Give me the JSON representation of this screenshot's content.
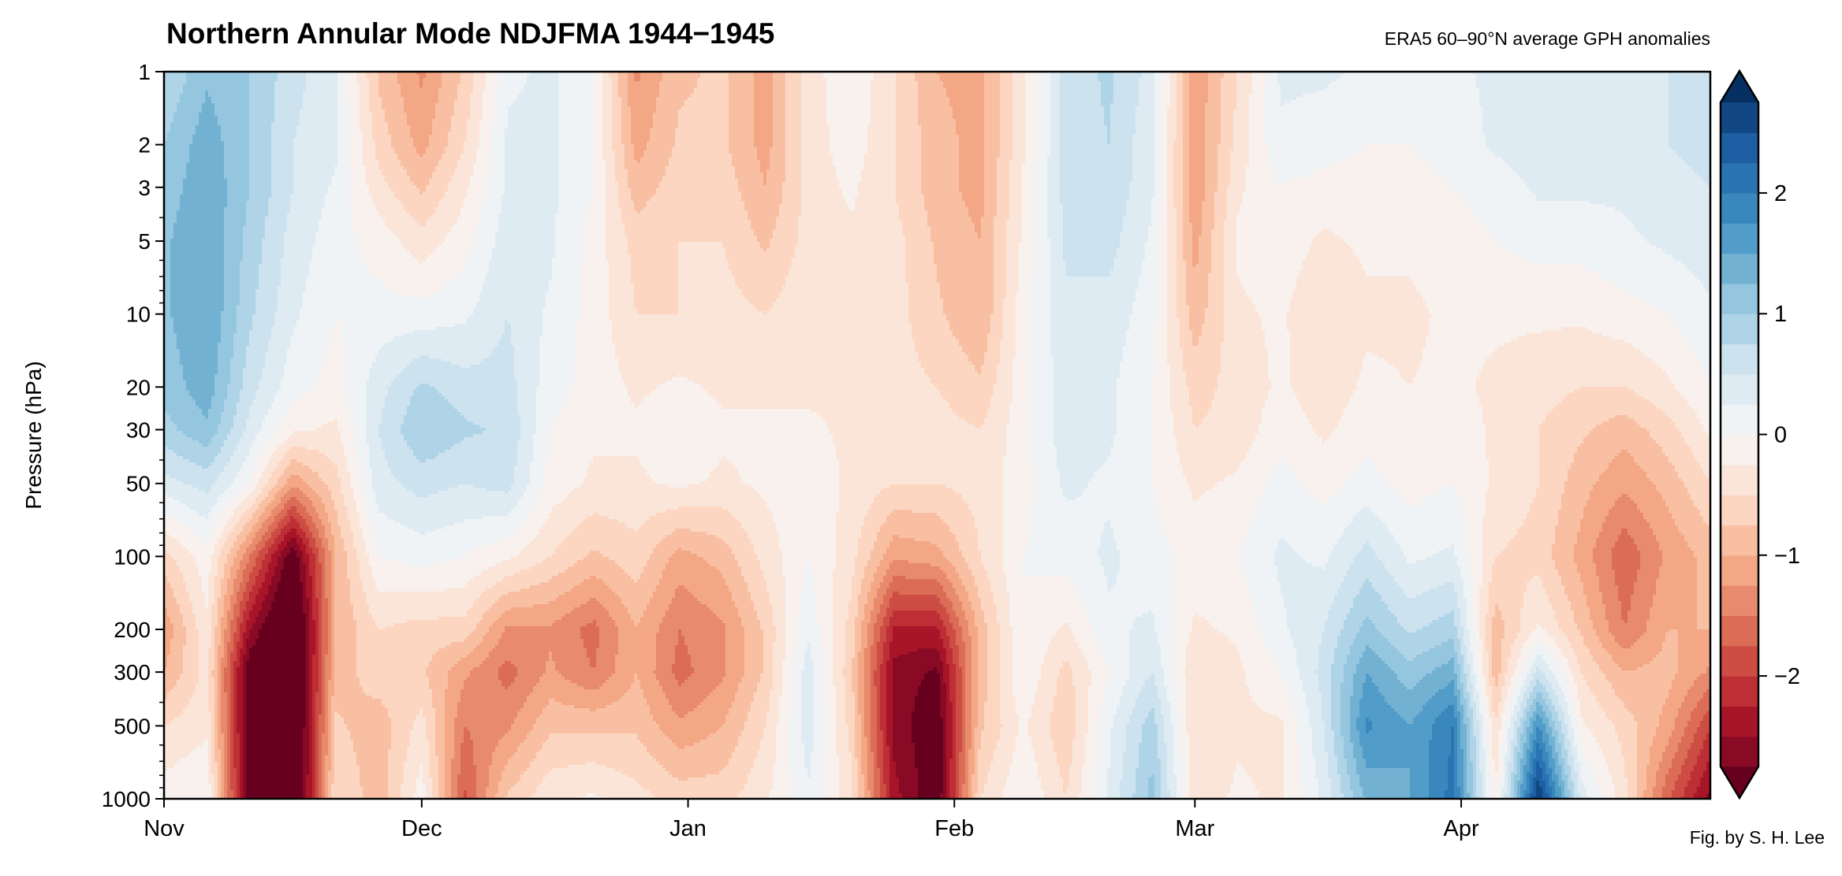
{
  "chart_data": {
    "type": "heatmap",
    "style": "filled-contour",
    "title": "Northern Annular Mode NDJFMA 1944−1945",
    "subtitle": "ERA5 60–90°N average GPH anomalies",
    "xlabel": "",
    "ylabel": "Pressure (hPa)",
    "yscale": "log",
    "ylim": [
      1000,
      1
    ],
    "yticks": [
      1,
      2,
      3,
      5,
      10,
      20,
      30,
      50,
      100,
      200,
      300,
      500,
      1000
    ],
    "xlim": [
      "1944-11-01",
      "1945-04-30"
    ],
    "xticks": [
      {
        "label": "Nov",
        "date": "1944-11-01"
      },
      {
        "label": "Dec",
        "date": "1944-12-01"
      },
      {
        "label": "Jan",
        "date": "1945-01-01"
      },
      {
        "label": "Feb",
        "date": "1945-02-01"
      },
      {
        "label": "Mar",
        "date": "1945-03-01"
      },
      {
        "label": "Apr",
        "date": "1945-04-01"
      }
    ],
    "grid": false,
    "pressure_levels": [
      1,
      2,
      3,
      5,
      10,
      20,
      30,
      50,
      100,
      200,
      300,
      500,
      1000
    ],
    "dates": [
      "1944-11-01",
      "1944-11-06",
      "1944-11-11",
      "1944-11-16",
      "1944-11-21",
      "1944-11-26",
      "1944-12-01",
      "1944-12-06",
      "1944-12-11",
      "1944-12-16",
      "1944-12-21",
      "1944-12-26",
      "1944-12-31",
      "1945-01-05",
      "1945-01-10",
      "1945-01-15",
      "1945-01-20",
      "1945-01-25",
      "1945-01-30",
      "1945-02-04",
      "1945-02-09",
      "1945-02-14",
      "1945-02-19",
      "1945-02-24",
      "1945-03-01",
      "1945-03-06",
      "1945-03-11",
      "1945-03-16",
      "1945-03-21",
      "1945-03-26",
      "1945-03-31",
      "1945-04-05",
      "1945-04-10",
      "1945-04-15",
      "1945-04-20",
      "1945-04-25",
      "1945-04-30"
    ],
    "values": [
      [
        0.75,
        1.0,
        1.1,
        1.2,
        1.2,
        1.1,
        0.9,
        0.4,
        -0.6,
        -1.2,
        -1.0,
        -0.5,
        -0.1
      ],
      [
        1.2,
        1.4,
        1.45,
        1.5,
        1.5,
        1.4,
        1.2,
        0.6,
        -0.1,
        -0.3,
        -0.4,
        -0.3,
        0.0
      ],
      [
        1.0,
        1.0,
        1.0,
        0.9,
        0.8,
        0.6,
        0.4,
        0.0,
        -1.5,
        -2.5,
        -3.0,
        -3.0,
        -3.0
      ],
      [
        0.6,
        0.5,
        0.5,
        0.4,
        0.3,
        0.1,
        -0.2,
        -1.2,
        -3.0,
        -3.5,
        -3.5,
        -3.5,
        -3.5
      ],
      [
        0.3,
        0.3,
        0.2,
        0.1,
        0.0,
        -0.1,
        -0.3,
        -0.6,
        -1.0,
        -1.0,
        -0.9,
        -0.7,
        -0.5
      ],
      [
        -0.8,
        -0.6,
        -0.4,
        -0.1,
        0.1,
        0.4,
        0.5,
        0.4,
        0.0,
        -0.5,
        -0.6,
        -0.9,
        -0.9
      ],
      [
        -1.3,
        -1.1,
        -0.8,
        -0.4,
        0.1,
        0.8,
        1.0,
        0.6,
        0.1,
        -0.6,
        -0.7,
        -0.4,
        -0.1
      ],
      [
        -0.7,
        -0.5,
        -0.3,
        -0.1,
        0.2,
        0.6,
        0.8,
        0.5,
        0.0,
        -0.6,
        -1.2,
        -1.5,
        -1.8
      ],
      [
        0.2,
        0.3,
        0.3,
        0.4,
        0.5,
        0.6,
        0.7,
        0.6,
        -0.2,
        -1.3,
        -1.6,
        -1.3,
        -0.7
      ],
      [
        0.3,
        0.3,
        0.3,
        0.3,
        0.2,
        0.1,
        0.0,
        -0.1,
        -0.5,
        -1.3,
        -1.2,
        -0.8,
        -0.3
      ],
      [
        0.0,
        0.0,
        0.0,
        -0.1,
        -0.1,
        -0.1,
        -0.2,
        -0.3,
        -0.8,
        -1.6,
        -1.5,
        -0.8,
        -0.2
      ],
      [
        -1.3,
        -1.1,
        -0.9,
        -0.6,
        -0.5,
        -0.3,
        -0.2,
        -0.3,
        -0.6,
        -1.0,
        -1.0,
        -0.8,
        -0.4
      ],
      [
        -0.8,
        -0.7,
        -0.6,
        -0.5,
        -0.5,
        -0.2,
        0.0,
        -0.2,
        -1.1,
        -1.5,
        -1.6,
        -1.2,
        -0.6
      ],
      [
        -0.7,
        -0.7,
        -0.6,
        -0.5,
        -0.4,
        -0.3,
        -0.2,
        -0.3,
        -0.9,
        -1.3,
        -1.3,
        -1.0,
        -0.6
      ],
      [
        -1.1,
        -1.1,
        -1.0,
        -0.8,
        -0.5,
        -0.3,
        -0.2,
        -0.2,
        -0.4,
        -0.7,
        -0.7,
        -0.5,
        -0.3
      ],
      [
        -0.4,
        -0.4,
        -0.4,
        -0.4,
        -0.3,
        -0.3,
        -0.2,
        -0.1,
        0.0,
        0.2,
        0.4,
        0.4,
        0.2
      ],
      [
        0.0,
        -0.1,
        -0.2,
        -0.3,
        -0.3,
        -0.3,
        -0.3,
        -0.3,
        -0.4,
        -0.6,
        -0.7,
        -0.6,
        -0.4
      ],
      [
        -0.5,
        -0.5,
        -0.5,
        -0.4,
        -0.4,
        -0.4,
        -0.4,
        -0.5,
        -1.2,
        -2.3,
        -2.6,
        -2.6,
        -2.4
      ],
      [
        -1.0,
        -0.9,
        -0.9,
        -0.8,
        -0.7,
        -0.5,
        -0.4,
        -0.5,
        -1.1,
        -2.3,
        -2.8,
        -3.0,
        -3.0
      ],
      [
        -1.1,
        -1.1,
        -1.1,
        -1.0,
        -1.0,
        -0.7,
        -0.5,
        -0.4,
        -0.5,
        -0.9,
        -0.9,
        -0.8,
        -0.5
      ],
      [
        -0.3,
        -0.3,
        -0.2,
        -0.2,
        -0.1,
        -0.1,
        -0.1,
        -0.1,
        0.0,
        0.0,
        0.0,
        -0.2,
        0.0
      ],
      [
        0.6,
        0.6,
        0.6,
        0.55,
        0.45,
        0.4,
        0.4,
        0.3,
        0.1,
        -0.3,
        -0.6,
        -0.7,
        -0.5
      ],
      [
        0.8,
        0.75,
        0.7,
        0.6,
        0.4,
        0.3,
        0.3,
        0.2,
        0.3,
        0.2,
        0.0,
        0.2,
        0.3
      ],
      [
        0.4,
        0.3,
        0.3,
        0.2,
        0.1,
        0.0,
        0.0,
        0.0,
        0.1,
        0.3,
        0.5,
        0.9,
        1.1
      ],
      [
        -1.2,
        -1.2,
        -1.2,
        -1.1,
        -0.9,
        -0.6,
        -0.5,
        -0.3,
        -0.1,
        -0.3,
        -0.5,
        -0.5,
        -0.4
      ],
      [
        -0.5,
        -0.4,
        -0.3,
        -0.2,
        -0.3,
        -0.4,
        -0.4,
        -0.2,
        0.0,
        -0.2,
        -0.3,
        -0.3,
        -0.2
      ],
      [
        0.3,
        0.2,
        0.0,
        -0.1,
        -0.2,
        -0.2,
        -0.1,
        0.1,
        0.3,
        0.2,
        0.0,
        -0.3,
        -0.3
      ],
      [
        0.3,
        0.1,
        -0.1,
        -0.3,
        -0.5,
        -0.4,
        -0.3,
        -0.1,
        0.2,
        0.5,
        0.6,
        0.5,
        0.3
      ],
      [
        0.2,
        0.0,
        -0.1,
        -0.2,
        -0.3,
        -0.2,
        -0.1,
        0.1,
        0.6,
        1.1,
        1.5,
        1.8,
        1.3
      ],
      [
        0.1,
        0.0,
        -0.1,
        -0.2,
        -0.3,
        -0.25,
        -0.2,
        -0.1,
        0.2,
        0.7,
        1.1,
        1.5,
        1.5
      ],
      [
        0.2,
        0.1,
        0.0,
        -0.1,
        -0.2,
        -0.2,
        -0.1,
        0.0,
        0.3,
        0.9,
        1.4,
        2.0,
        2.1
      ],
      [
        0.3,
        0.3,
        0.1,
        0.0,
        -0.2,
        -0.3,
        -0.3,
        -0.3,
        -0.5,
        -0.9,
        -0.9,
        -0.5,
        -0.2
      ],
      [
        0.5,
        0.4,
        0.3,
        0.1,
        -0.2,
        -0.4,
        -0.5,
        -0.5,
        -0.6,
        -0.2,
        0.6,
        1.8,
        2.8
      ],
      [
        0.4,
        0.4,
        0.3,
        0.1,
        -0.2,
        -0.5,
        -0.7,
        -0.9,
        -1.1,
        -0.8,
        -0.5,
        -0.2,
        0.4
      ],
      [
        0.4,
        0.4,
        0.3,
        0.2,
        -0.1,
        -0.5,
        -0.9,
        -1.2,
        -1.7,
        -1.5,
        -1.0,
        -0.6,
        -0.4
      ],
      [
        0.5,
        0.5,
        0.4,
        0.3,
        0.0,
        -0.3,
        -0.6,
        -0.9,
        -1.2,
        -1.0,
        -0.9,
        -1.1,
        -1.7
      ],
      [
        0.6,
        0.6,
        0.5,
        0.4,
        0.2,
        0.0,
        -0.2,
        -0.5,
        -0.9,
        -1.0,
        -1.3,
        -2.0,
        -2.6
      ]
    ],
    "colorbar": {
      "cmap": "RdBu",
      "level_min": -2.75,
      "level_max": 2.75,
      "level_step": 0.25,
      "extend": "both",
      "ticks": [
        -2,
        -1,
        0,
        1,
        2
      ],
      "ticklabels": [
        "−2",
        "−1",
        "0",
        "1",
        "2"
      ],
      "colors": [
        "#67001f",
        "#b2182b",
        "#d6604d",
        "#f4a582",
        "#fddbc7",
        "#f7f7f7",
        "#d1e5f0",
        "#92c5de",
        "#4393c3",
        "#2166ac",
        "#053061"
      ]
    }
  },
  "credit": "Fig. by S. H. Lee"
}
